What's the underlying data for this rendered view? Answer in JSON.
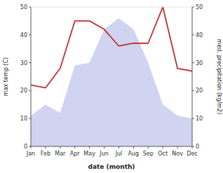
{
  "chart_data": {
    "type": "area",
    "x_label": "date (month)",
    "y_label": "max temp (C)",
    "y2_label": "med. precipitation (kg/m2)",
    "categories": [
      "Jan",
      "Feb",
      "Mar",
      "Apr",
      "May",
      "Jun",
      "Jul",
      "Aug",
      "Sep",
      "Oct",
      "Nov",
      "Dec"
    ],
    "series": [
      {
        "type": "area",
        "color": "#b0b8e8",
        "values": [
          11,
          15,
          12,
          29,
          30,
          42,
          46,
          42,
          30,
          15,
          11,
          10
        ]
      },
      {
        "type": "line",
        "color": "#c03030",
        "axis": "y2",
        "values": [
          22,
          21,
          28,
          45,
          45,
          42,
          36,
          37,
          37,
          50,
          28,
          27
        ]
      }
    ],
    "ylim": [
      0,
      50
    ],
    "yticks": [
      0,
      10,
      20,
      30,
      40,
      50
    ],
    "y2lim": [
      0,
      50
    ],
    "y2ticks": [
      0,
      10,
      20,
      30,
      40,
      50
    ],
    "grid": false
  }
}
